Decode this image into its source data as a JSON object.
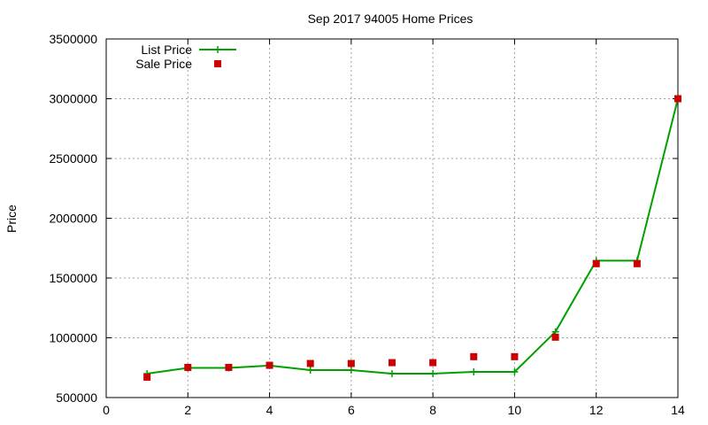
{
  "chart_data": {
    "type": "line",
    "title": "Sep 2017 94005 Home Prices",
    "xlabel": "",
    "ylabel": "Price",
    "xlim": [
      0,
      14
    ],
    "ylim": [
      500000,
      3500000
    ],
    "xticks": [
      0,
      2,
      4,
      6,
      8,
      10,
      12,
      14
    ],
    "yticks": [
      500000,
      1000000,
      1500000,
      2000000,
      2500000,
      3000000,
      3500000
    ],
    "grid": true,
    "legend_position": "top-left",
    "series": [
      {
        "name": "List Price",
        "style": "line-with-plus-markers",
        "color": "#00a000",
        "x": [
          1,
          2,
          3,
          4,
          5,
          6,
          7,
          8,
          9,
          10,
          11,
          12,
          13,
          14
        ],
        "y": [
          700000,
          748000,
          748000,
          768000,
          730000,
          730000,
          700000,
          700000,
          715000,
          715000,
          1050000,
          1645000,
          1645000,
          3000000
        ]
      },
      {
        "name": "Sale Price",
        "style": "square-markers",
        "color": "#cc0000",
        "x": [
          1,
          2,
          3,
          4,
          5,
          6,
          7,
          8,
          9,
          10,
          11,
          12,
          13,
          14
        ],
        "y": [
          670000,
          752000,
          752000,
          770000,
          785000,
          785000,
          792000,
          792000,
          842000,
          842000,
          1005000,
          1620000,
          1620000,
          3000000
        ]
      }
    ]
  }
}
